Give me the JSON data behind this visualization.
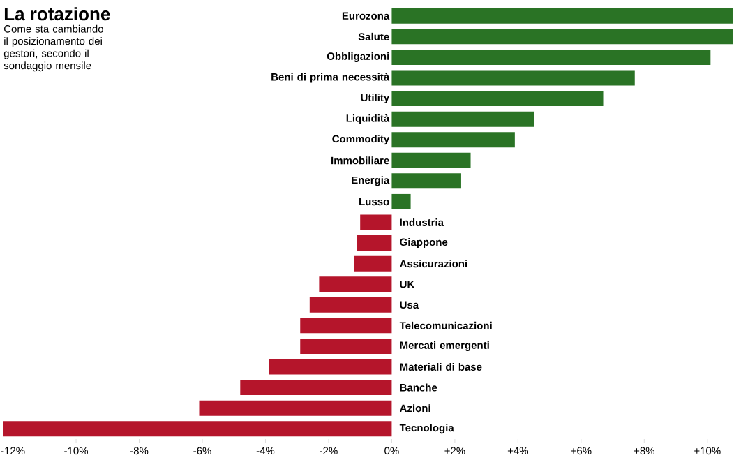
{
  "chart_data": {
    "type": "bar",
    "orientation": "horizontal",
    "title": "La rotazione",
    "subtitle": "Come sta cambiando il posizionamento dei gestori, secondo il sondaggio mensile",
    "categories": [
      "Eurozona",
      "Salute",
      "Obbligazioni",
      "Beni di prima necessità",
      "Utility",
      "Liquidità",
      "Commodity",
      "Immobiliare",
      "Energia",
      "Lusso",
      "Industria",
      "Giappone",
      "Assicurazioni",
      "UK",
      "Usa",
      "Telecomunicazioni",
      "Mercati emergenti",
      "Materiali di base",
      "Banche",
      "Azioni",
      "Tecnologia"
    ],
    "values": [
      10.8,
      10.8,
      10.1,
      7.7,
      6.7,
      4.5,
      3.9,
      2.5,
      2.2,
      0.6,
      -1.0,
      -1.1,
      -1.2,
      -2.3,
      -2.6,
      -2.9,
      -2.9,
      -3.9,
      -4.8,
      -6.1,
      -12.3
    ],
    "colors": [
      "#2a7325",
      "#2a7325",
      "#2a7325",
      "#2a7325",
      "#2a7325",
      "#2a7325",
      "#2a7325",
      "#2a7325",
      "#2a7325",
      "#2a7325",
      "#b5152b",
      "#b5152b",
      "#b5152b",
      "#b5152b",
      "#b5152b",
      "#b5152b",
      "#b5152b",
      "#b5152b",
      "#b5152b",
      "#b5152b",
      "#b5152b"
    ],
    "xlim": [
      -12.3,
      10.8
    ],
    "xticks": [
      {
        "value": -12,
        "label": "-12%"
      },
      {
        "value": -10,
        "label": "-10%"
      },
      {
        "value": -8,
        "label": "-8%"
      },
      {
        "value": -6,
        "label": "-6%"
      },
      {
        "value": -4,
        "label": "-4%"
      },
      {
        "value": -2,
        "label": "-2%"
      },
      {
        "value": 0,
        "label": "0%"
      },
      {
        "value": 2,
        "label": "+2%"
      },
      {
        "value": 4,
        "label": "+4%"
      },
      {
        "value": 6,
        "label": "+6%"
      },
      {
        "value": 8,
        "label": "+8%"
      },
      {
        "value": 10,
        "label": "+10%"
      }
    ]
  }
}
